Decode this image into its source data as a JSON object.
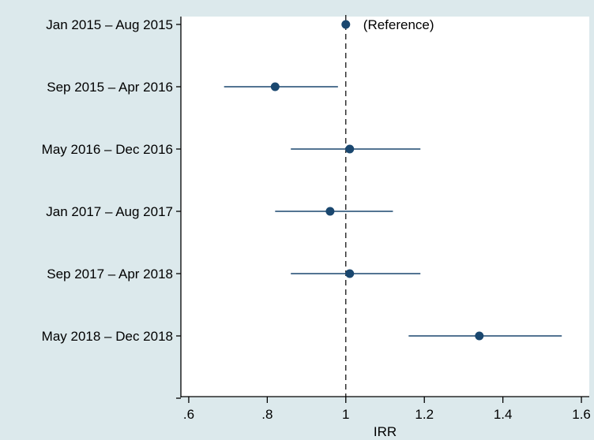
{
  "chart_data": {
    "type": "scatter",
    "subtype": "forest-plot",
    "title": "",
    "xlabel": "IRR",
    "ylabel": "",
    "xlim": [
      0.58,
      1.62
    ],
    "xticks": [
      0.6,
      0.8,
      1.0,
      1.2,
      1.4,
      1.6
    ],
    "xtick_labels": [
      ".6",
      ".8",
      "1",
      "1.2",
      "1.4",
      "1.6"
    ],
    "reference_line": 1.0,
    "reference_line_style": "dashed",
    "grid": false,
    "legend": "none",
    "marker_color": "#1a476f",
    "plot_background": "#ffffff",
    "outer_background": "#dce9ec",
    "categories": [
      "Jan 2015 – Aug 2015",
      "Sep 2015 – Apr 2016",
      "May 2016 – Dec 2016",
      "Jan 2017 – Aug 2017",
      "Sep 2017 – Apr 2018",
      "May 2018 – Dec 2018"
    ],
    "points": [
      {
        "category": "Jan 2015 – Aug 2015",
        "estimate": 1.0,
        "ci_low": null,
        "ci_high": null,
        "annotation": "(Reference)"
      },
      {
        "category": "Sep 2015 – Apr 2016",
        "estimate": 0.82,
        "ci_low": 0.69,
        "ci_high": 0.98,
        "annotation": ""
      },
      {
        "category": "May 2016 – Dec 2016",
        "estimate": 1.01,
        "ci_low": 0.86,
        "ci_high": 1.19,
        "annotation": ""
      },
      {
        "category": "Jan 2017 – Aug 2017",
        "estimate": 0.96,
        "ci_low": 0.82,
        "ci_high": 1.12,
        "annotation": ""
      },
      {
        "category": "Sep 2017 – Apr 2018",
        "estimate": 1.01,
        "ci_low": 0.86,
        "ci_high": 1.19,
        "annotation": ""
      },
      {
        "category": "May 2018 – Dec 2018",
        "estimate": 1.34,
        "ci_low": 1.16,
        "ci_high": 1.55,
        "annotation": ""
      }
    ]
  }
}
